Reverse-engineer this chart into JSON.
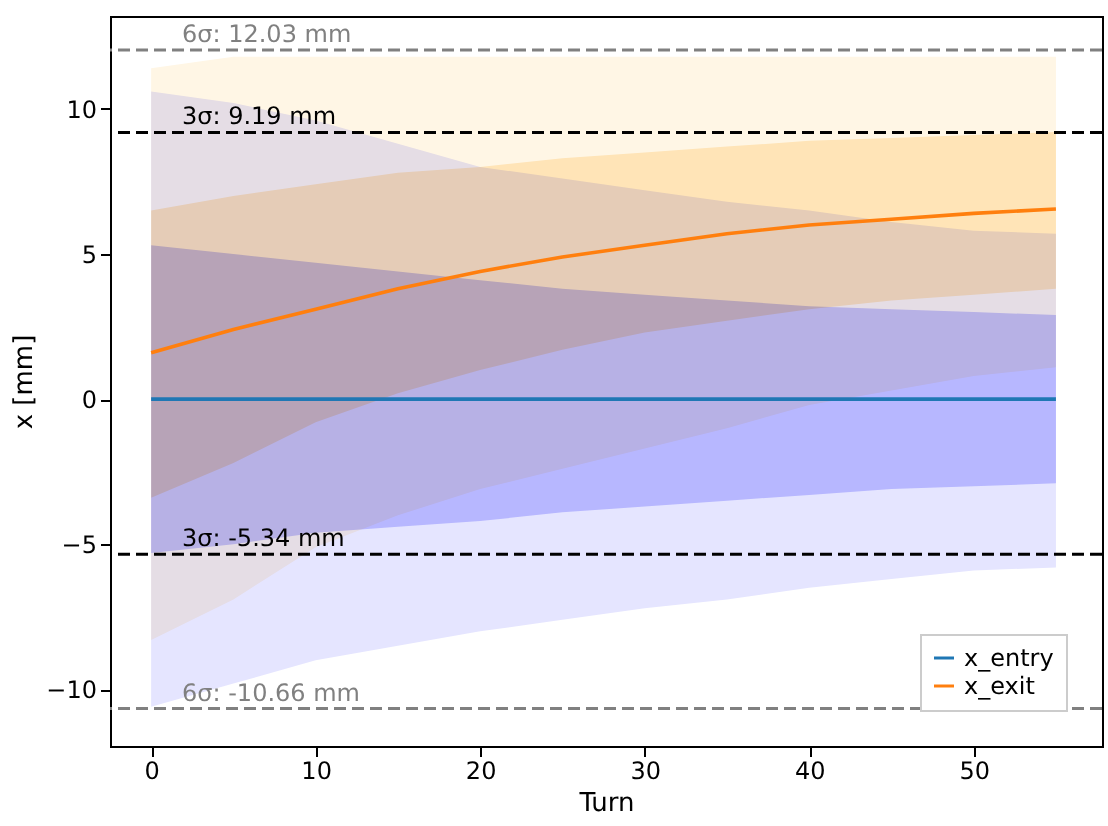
{
  "chart_data": {
    "type": "line",
    "xlabel": "Turn",
    "ylabel": "x [mm]",
    "x": [
      0,
      5,
      10,
      15,
      20,
      25,
      30,
      35,
      40,
      45,
      50,
      55
    ],
    "series": [
      {
        "color": "#fff6e5",
        "values": [
          null,
          null,
          null,
          null,
          null,
          null,
          null,
          null,
          null,
          null,
          null,
          null
        ],
        "lower": [
          -8.3,
          -6.9,
          -5.1,
          -4.0,
          -3.1,
          -2.4,
          -1.7,
          -1.0,
          -0.2,
          0.3,
          0.8,
          1.1
        ],
        "upper": [
          11.4,
          11.8,
          11.8,
          11.8,
          11.8,
          11.8,
          11.8,
          11.8,
          11.8,
          11.8,
          11.8,
          11.8
        ]
      },
      {
        "color": "#ffedcc",
        "values": [
          null,
          null,
          null,
          null,
          null,
          null,
          null,
          null,
          null,
          null,
          null,
          null
        ],
        "lower": [
          -3.4,
          -2.2,
          -0.8,
          0.2,
          1.0,
          1.7,
          2.3,
          2.7,
          3.1,
          3.4,
          3.6,
          3.8
        ],
        "upper": [
          6.5,
          7.0,
          7.4,
          7.8,
          8.0,
          8.3,
          8.5,
          8.7,
          8.9,
          9.0,
          9.1,
          9.2
        ]
      },
      {
        "color": "#e5e5ff",
        "values": [
          null,
          null,
          null,
          null,
          null,
          null,
          null,
          null,
          null,
          null,
          null,
          null
        ],
        "lower": [
          -10.6,
          -9.8,
          -9.0,
          -8.5,
          -8.0,
          -7.6,
          -7.2,
          -6.9,
          -6.5,
          -6.2,
          -5.9,
          -5.8
        ],
        "upper": [
          10.6,
          10.2,
          9.6,
          8.8,
          8.0,
          7.6,
          7.2,
          6.8,
          6.5,
          6.1,
          5.8,
          5.7
        ]
      },
      {
        "color": "#ccccff",
        "values": [
          null,
          null,
          null,
          null,
          null,
          null,
          null,
          null,
          null,
          null,
          null,
          null
        ],
        "lower": [
          -5.3,
          -5.0,
          -4.6,
          -4.4,
          -4.2,
          -3.9,
          -3.7,
          -3.5,
          -3.3,
          -3.1,
          -3.0,
          -2.9
        ],
        "upper": [
          5.3,
          5.0,
          4.7,
          4.4,
          4.1,
          3.8,
          3.6,
          3.4,
          3.2,
          3.1,
          3.0,
          2.9
        ]
      },
      {
        "name": "x_entry",
        "color": "#1f77b4",
        "values": [
          0.0,
          0.0,
          0.0,
          0.0,
          0.0,
          0.0,
          0.0,
          0.0,
          0.0,
          0.0,
          0.0,
          0.0
        ]
      },
      {
        "name": "x_exit",
        "color": "#ff7f0e",
        "values": [
          1.6,
          2.4,
          3.1,
          3.8,
          4.4,
          4.9,
          5.3,
          5.7,
          6.0,
          6.2,
          6.4,
          6.55
        ]
      }
    ],
    "ref_lines": [
      {
        "axis": "y",
        "value": 12.03,
        "label": "6σ: 12.03 mm",
        "color": "#808080",
        "line_style": "dashed"
      },
      {
        "axis": "y",
        "value": 9.19,
        "label": "3σ: 9.19 mm",
        "color": "#000000",
        "line_style": "dashed"
      },
      {
        "axis": "y",
        "value": -5.34,
        "label": "3σ: -5.34 mm",
        "color": "#000000",
        "line_style": "dashed"
      },
      {
        "axis": "y",
        "value": -10.66,
        "label": "6σ: -10.66 mm",
        "color": "#808080",
        "line_style": "dashed"
      }
    ],
    "xlim": [
      -2.5,
      57.8
    ],
    "ylim": [
      -11.95,
      13.2
    ],
    "xticks": [
      0,
      10,
      20,
      30,
      40,
      50
    ],
    "yticks": [
      -10,
      -5,
      0,
      5,
      10
    ],
    "grid": false,
    "legend": "bottom right",
    "marker": "none",
    "line_style": "solid"
  }
}
